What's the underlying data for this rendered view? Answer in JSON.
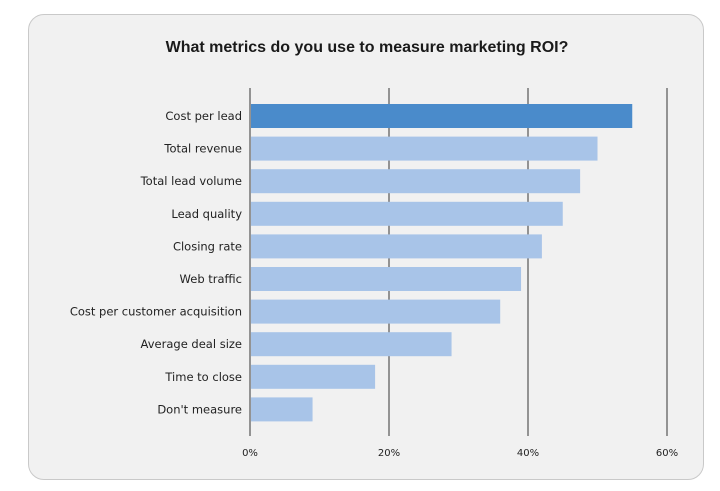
{
  "chart_data": {
    "type": "bar",
    "orientation": "horizontal",
    "title": "What metrics do you use to measure marketing ROI?",
    "categories": [
      "Cost per lead",
      "Total revenue",
      "Total lead volume",
      "Lead quality",
      "Closing rate",
      "Web traffic",
      "Cost per customer acquisition",
      "Average deal size",
      "Time to close",
      "Don't measure"
    ],
    "values": [
      55,
      50,
      47.5,
      45,
      42,
      39,
      36,
      29,
      18,
      9
    ],
    "xlim": [
      0,
      60
    ],
    "xticks": [
      0,
      20,
      40,
      60
    ],
    "xtick_labels": [
      "0%",
      "20%",
      "40%",
      "60%"
    ],
    "grid": "vertical",
    "colors": {
      "highlight": "#4a8bcb",
      "bar": "#a8c4e8",
      "grid": "#555555"
    },
    "highlight_index": 0
  }
}
